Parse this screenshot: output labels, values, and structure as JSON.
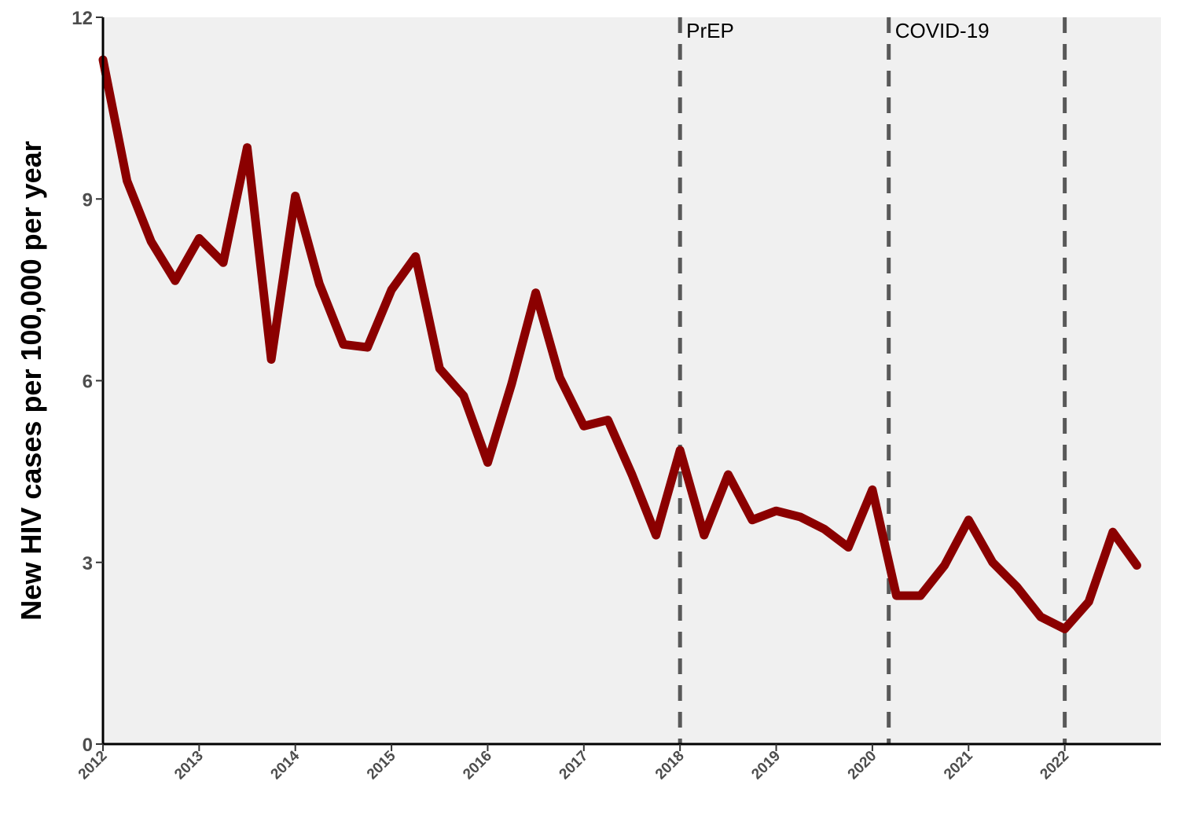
{
  "chart_data": {
    "type": "line",
    "title": "",
    "xlabel": "",
    "ylabel": "New HIV cases per 100,000 per year",
    "xlim": [
      2012,
      2023
    ],
    "ylim": [
      0,
      12
    ],
    "y_ticks": [
      0,
      3,
      6,
      9,
      12
    ],
    "x_ticks": [
      2012,
      2013,
      2014,
      2015,
      2016,
      2017,
      2018,
      2019,
      2020,
      2021,
      2022
    ],
    "x_tick_labels": [
      "2012",
      "2013",
      "2014",
      "2015",
      "2016",
      "2017",
      "2018",
      "2019",
      "2020",
      "2021",
      "2022"
    ],
    "grid": false,
    "panel_color": "#f0f0f0",
    "line_color": "#8b0000",
    "vline_color": "#595959",
    "series": [
      {
        "x": [
          2012.0,
          2012.25,
          2012.5,
          2012.75,
          2013.0,
          2013.25,
          2013.5,
          2013.75,
          2014.0,
          2014.25,
          2014.5,
          2014.75,
          2015.0,
          2015.25,
          2015.5,
          2015.75,
          2016.0,
          2016.25,
          2016.5,
          2016.75,
          2017.0,
          2017.25,
          2017.5,
          2017.75,
          2018.0,
          2018.25,
          2018.5,
          2018.75,
          2019.0,
          2019.25,
          2019.5,
          2019.75,
          2020.0,
          2020.25,
          2020.5,
          2020.75,
          2021.0,
          2021.25,
          2021.5,
          2021.75,
          2022.0,
          2022.25,
          2022.5,
          2022.75
        ],
        "values": [
          11.3,
          9.3,
          8.3,
          7.65,
          8.35,
          7.95,
          9.85,
          6.35,
          9.05,
          7.6,
          6.6,
          6.55,
          7.5,
          8.05,
          6.2,
          5.75,
          4.65,
          5.95,
          7.45,
          6.05,
          5.25,
          5.35,
          4.45,
          3.45,
          4.85,
          3.45,
          4.45,
          3.7,
          3.85,
          3.75,
          3.55,
          3.25,
          4.2,
          2.45,
          2.45,
          2.95,
          3.7,
          3.0,
          2.6,
          2.1,
          1.9,
          2.35,
          3.5,
          2.95
        ]
      }
    ],
    "annotations": [
      {
        "x": 2018.0,
        "label": "PrEP"
      },
      {
        "x": 2020.17,
        "label": "COVID-19"
      },
      {
        "x": 2022.0,
        "label": ""
      }
    ]
  }
}
